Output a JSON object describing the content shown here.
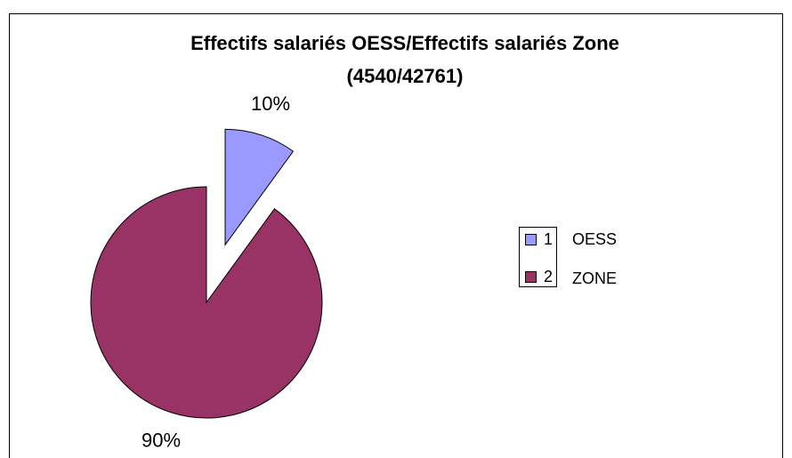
{
  "chart_data": {
    "type": "pie",
    "title": [
      "Effectifs salariés OESS/Effectifs salariés Zone",
      "(4540/42761)"
    ],
    "categories": [
      "1",
      "2"
    ],
    "legend_notes": [
      "OESS",
      "ZONE"
    ],
    "values": [
      10,
      90
    ],
    "value_labels": [
      "10%",
      "90%"
    ],
    "colors": [
      "#9999ff",
      "#993366"
    ],
    "exploded": [
      true,
      false
    ],
    "legend": "right"
  }
}
